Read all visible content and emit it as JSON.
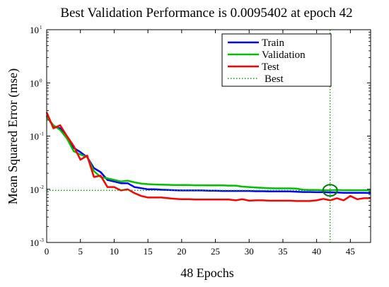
{
  "chart_data": {
    "type": "line",
    "title": "Best Validation Performance is 0.0095402 at epoch 42",
    "xlabel": "48 Epochs",
    "ylabel": "Mean Squared Error  (mse)",
    "xlim": [
      0,
      48
    ],
    "ylim": [
      0.001,
      10
    ],
    "yscale": "log",
    "x_ticks": [
      0,
      5,
      10,
      15,
      20,
      25,
      30,
      35,
      40,
      45
    ],
    "y_ticks": [
      {
        "value": 10,
        "base": "10",
        "exp": "1"
      },
      {
        "value": 1,
        "base": "10",
        "exp": "0"
      },
      {
        "value": 0.1,
        "base": "10",
        "exp": "-1"
      },
      {
        "value": 0.01,
        "base": "10",
        "exp": "-2"
      },
      {
        "value": 0.001,
        "base": "10",
        "exp": "-3"
      }
    ],
    "legend_position": "top-right",
    "best": {
      "epoch": 42,
      "value": 0.0095402,
      "label": "Best",
      "color": "#00a000"
    },
    "series": [
      {
        "name": "Train",
        "color": "#0000ff",
        "x": [
          0,
          1,
          2,
          3,
          4,
          5,
          6,
          7,
          8,
          9,
          10,
          11,
          12,
          13,
          14,
          15,
          16,
          17,
          18,
          19,
          20,
          21,
          22,
          23,
          24,
          25,
          26,
          27,
          28,
          29,
          30,
          31,
          32,
          33,
          34,
          35,
          36,
          37,
          38,
          39,
          40,
          41,
          42,
          43,
          44,
          45,
          46,
          47,
          48
        ],
        "y": [
          0.24,
          0.15,
          0.14,
          0.095,
          0.06,
          0.05,
          0.04,
          0.025,
          0.021,
          0.015,
          0.014,
          0.013,
          0.013,
          0.011,
          0.0105,
          0.01,
          0.01,
          0.0098,
          0.0097,
          0.0096,
          0.0095,
          0.0095,
          0.0095,
          0.0095,
          0.0094,
          0.0094,
          0.0093,
          0.0093,
          0.0093,
          0.0093,
          0.0093,
          0.0092,
          0.0092,
          0.0091,
          0.0091,
          0.0091,
          0.0091,
          0.009,
          0.0089,
          0.0089,
          0.0088,
          0.0088,
          0.0087,
          0.0087,
          0.0086,
          0.0086,
          0.0086,
          0.0086,
          0.0085
        ]
      },
      {
        "name": "Validation",
        "color": "#00c000",
        "x": [
          0,
          1,
          2,
          3,
          4,
          5,
          6,
          7,
          8,
          9,
          10,
          11,
          12,
          13,
          14,
          15,
          16,
          17,
          18,
          19,
          20,
          21,
          22,
          23,
          24,
          25,
          26,
          27,
          28,
          29,
          30,
          31,
          32,
          33,
          34,
          35,
          36,
          37,
          38,
          39,
          40,
          41,
          42,
          43,
          44,
          45,
          46,
          47,
          48
        ],
        "y": [
          0.23,
          0.16,
          0.13,
          0.09,
          0.052,
          0.045,
          0.04,
          0.022,
          0.017,
          0.016,
          0.015,
          0.014,
          0.0145,
          0.0135,
          0.0128,
          0.0125,
          0.0123,
          0.0122,
          0.0121,
          0.012,
          0.012,
          0.012,
          0.0119,
          0.0119,
          0.0118,
          0.0118,
          0.0118,
          0.0117,
          0.0117,
          0.0112,
          0.011,
          0.0108,
          0.0106,
          0.0105,
          0.0104,
          0.0104,
          0.0104,
          0.0103,
          0.0098,
          0.0097,
          0.0097,
          0.0096,
          0.0095402,
          0.0097,
          0.0096,
          0.0096,
          0.0096,
          0.0096,
          0.0095
        ]
      },
      {
        "name": "Test",
        "color": "#ff0000",
        "x": [
          0,
          1,
          2,
          3,
          4,
          5,
          6,
          7,
          8,
          9,
          10,
          11,
          12,
          13,
          14,
          15,
          16,
          17,
          18,
          19,
          20,
          21,
          22,
          23,
          24,
          25,
          26,
          27,
          28,
          29,
          30,
          31,
          32,
          33,
          34,
          35,
          36,
          37,
          38,
          39,
          40,
          41,
          42,
          43,
          44,
          45,
          46,
          47,
          48
        ],
        "y": [
          0.28,
          0.14,
          0.16,
          0.1,
          0.065,
          0.036,
          0.043,
          0.017,
          0.018,
          0.011,
          0.011,
          0.0095,
          0.01,
          0.0085,
          0.0075,
          0.007,
          0.007,
          0.007,
          0.0068,
          0.0066,
          0.0065,
          0.0065,
          0.0064,
          0.0064,
          0.0064,
          0.0064,
          0.0064,
          0.0064,
          0.0062,
          0.0065,
          0.0061,
          0.0062,
          0.0062,
          0.0061,
          0.0061,
          0.0061,
          0.0061,
          0.006,
          0.006,
          0.006,
          0.0062,
          0.0066,
          0.0062,
          0.0068,
          0.0062,
          0.0075,
          0.0065,
          0.0068,
          0.0068
        ]
      }
    ]
  }
}
